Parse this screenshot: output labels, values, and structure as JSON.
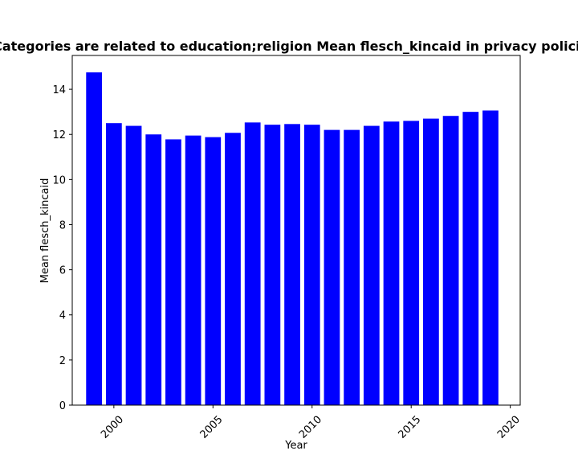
{
  "chart_data": {
    "type": "bar",
    "title": "Categories are related to education;religion Mean flesch_kincaid in privacy policies",
    "xlabel": "Year",
    "ylabel": "Mean flesch_kincaid",
    "x": [
      1999,
      2000,
      2001,
      2002,
      2003,
      2004,
      2005,
      2006,
      2007,
      2008,
      2009,
      2010,
      2011,
      2012,
      2013,
      2014,
      2015,
      2016,
      2017,
      2018,
      2019
    ],
    "values": [
      14.75,
      12.5,
      12.38,
      12.0,
      11.78,
      11.95,
      11.88,
      12.07,
      12.53,
      12.43,
      12.46,
      12.43,
      12.2,
      12.2,
      12.38,
      12.57,
      12.6,
      12.7,
      12.82,
      13.0,
      13.06
    ],
    "xlim": [
      1997.9,
      2020.5
    ],
    "ylim": [
      0,
      15.5
    ],
    "xticks": [
      2000,
      2005,
      2010,
      2015,
      2020
    ],
    "yticks": [
      0,
      2,
      4,
      6,
      8,
      10,
      12,
      14
    ],
    "bar_color": "#0000ff",
    "grid": false
  }
}
